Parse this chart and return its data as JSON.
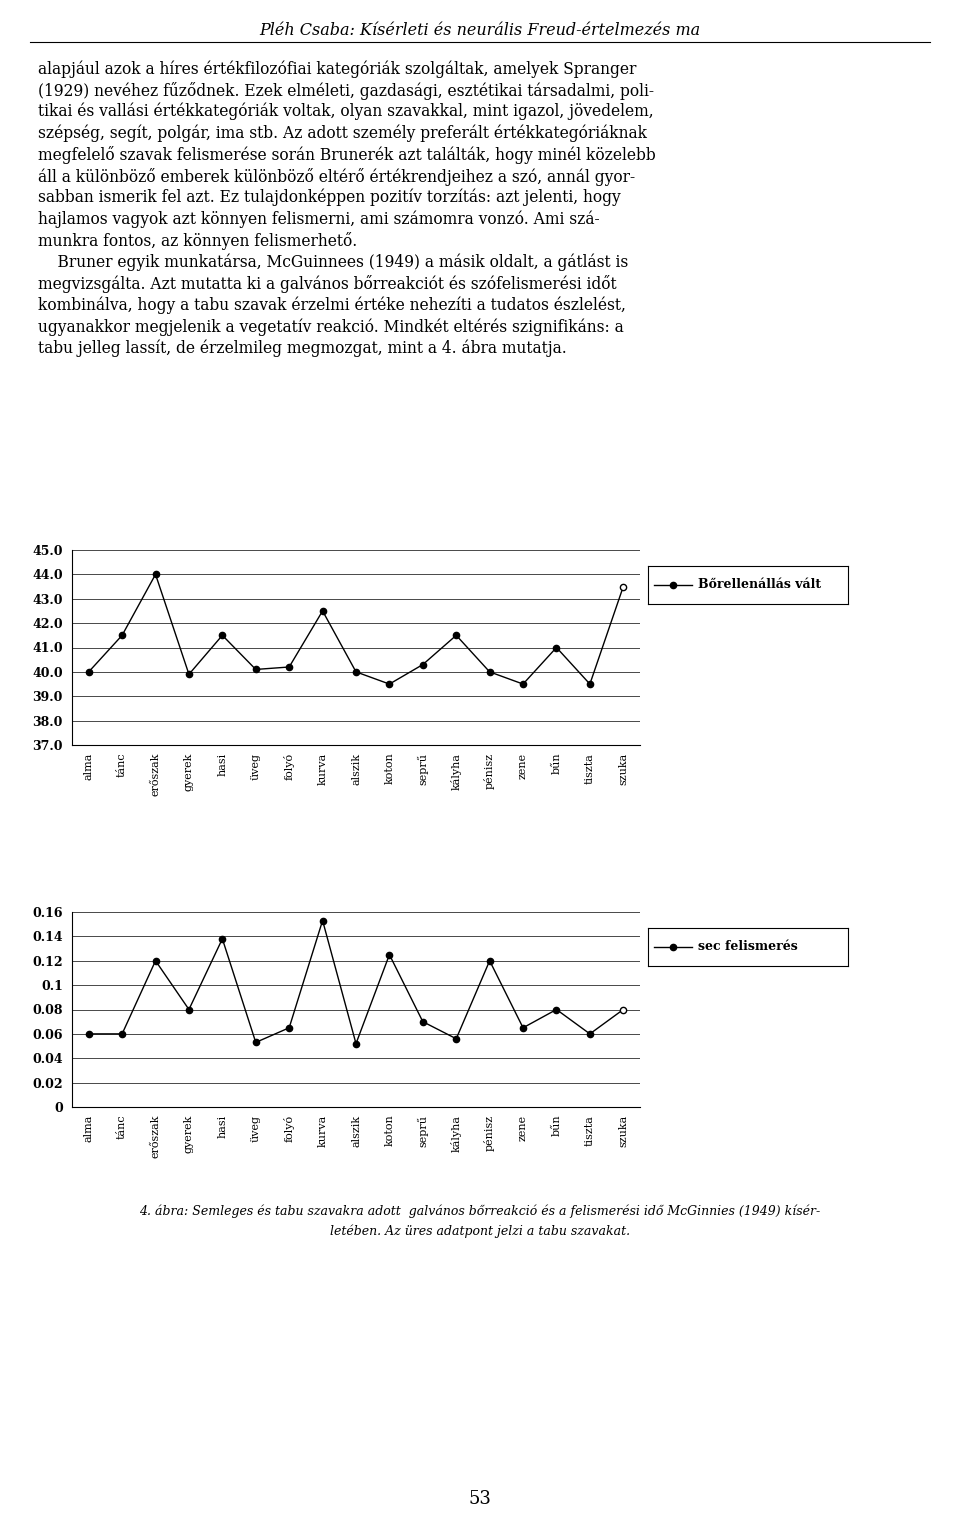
{
  "title": "Pléh Csaba: Kísérleti és neurális Freud-értelmezés ma",
  "body_text_lines": [
    "alapjául azok a híres értékfilozófiai kategóriák szolgáltak, amelyek Spranger",
    "(1929) nevéhez fűződnek. Ezek elméleti, gazdasági, esztétikai társadalmi, poli-",
    "tikai és vallási értékkategóriák voltak, olyan szavakkal, mint igazol, jövedelem,",
    "szépség, segít, polgár, ima stb. Az adott személy preferált értékkategóriáknak",
    "megfelelő szavak felismerése során Brunerék azt találták, hogy minél közelebb",
    "áll a különböző emberek különböző eltérő értékrendjeihez a szó, annál gyor-",
    "sabban ismerik fel azt. Ez tulajdonképpen pozitív torzítás: azt jelenti, hogy",
    "hajlamos vagyok azt könnyen felismerni, ami számomra vonzó. Ami szá-",
    "munkra fontos, az könnyen felismerhető.",
    "    Bruner egyik munkatársa, McGuinnees (1949) a másik oldalt, a gátlást is",
    "megvizsgálta. Azt mutatta ki a galvános bőrreakciót és szófelismerési időt",
    "kombinálva, hogy a tabu szavak érzelmi értéke nehezíti a tudatos észlelést,",
    "ugyanakkor megjelenik a vegetatív reakció. Mindkét eltérés szignifikáns: a",
    "tabu jelleg lassít, de érzelmileg megmozgat, mint a 4. ábra mutatja."
  ],
  "categories": [
    "alma",
    "tánc",
    "erőszak",
    "gyerek",
    "hasi",
    "üveg",
    "folyó",
    "kurva",
    "alszik",
    "koton",
    "seprű",
    "kályha",
    "pénisz",
    "zene",
    "bűn",
    "tiszta",
    "szuka"
  ],
  "chart1_values_filled": [
    40.0,
    41.5,
    44.0,
    39.9,
    41.5,
    40.1,
    40.2,
    42.5,
    40.0,
    39.5,
    40.3,
    41.5,
    40.0,
    39.5,
    41.0,
    39.5,
    null
  ],
  "chart1_values_open": [
    null,
    null,
    null,
    null,
    null,
    null,
    null,
    null,
    null,
    null,
    null,
    null,
    null,
    null,
    null,
    null,
    43.5
  ],
  "chart1_ylabel_vals": [
    37.0,
    38.0,
    39.0,
    40.0,
    41.0,
    42.0,
    43.0,
    44.0,
    45.0
  ],
  "chart1_ylim": [
    37.0,
    45.0
  ],
  "chart1_legend": "Bőrellenállás vált",
  "chart2_values_filled": [
    0.06,
    0.06,
    0.12,
    0.08,
    0.138,
    0.053,
    0.065,
    0.153,
    0.052,
    0.125,
    0.07,
    0.056,
    0.12,
    0.065,
    0.08,
    0.06,
    null
  ],
  "chart2_values_open": [
    null,
    null,
    null,
    null,
    null,
    null,
    null,
    null,
    null,
    null,
    null,
    null,
    null,
    null,
    null,
    null,
    0.08
  ],
  "chart2_ylabel_vals": [
    0,
    0.02,
    0.04,
    0.06,
    0.08,
    0.1,
    0.12,
    0.14,
    0.16
  ],
  "chart2_ylim": [
    0,
    0.16
  ],
  "chart2_legend": "sec felismerés",
  "caption_line1": "4. ábra: Semleges és tabu szavakra adott  galvános bőrreakció és a felismerési idő McGinnies (1949) kísér-",
  "caption_line2": "letében. Az üres adatpont jelzi a tabu szavakat.",
  "page_number": "53",
  "background_color": "#ffffff"
}
